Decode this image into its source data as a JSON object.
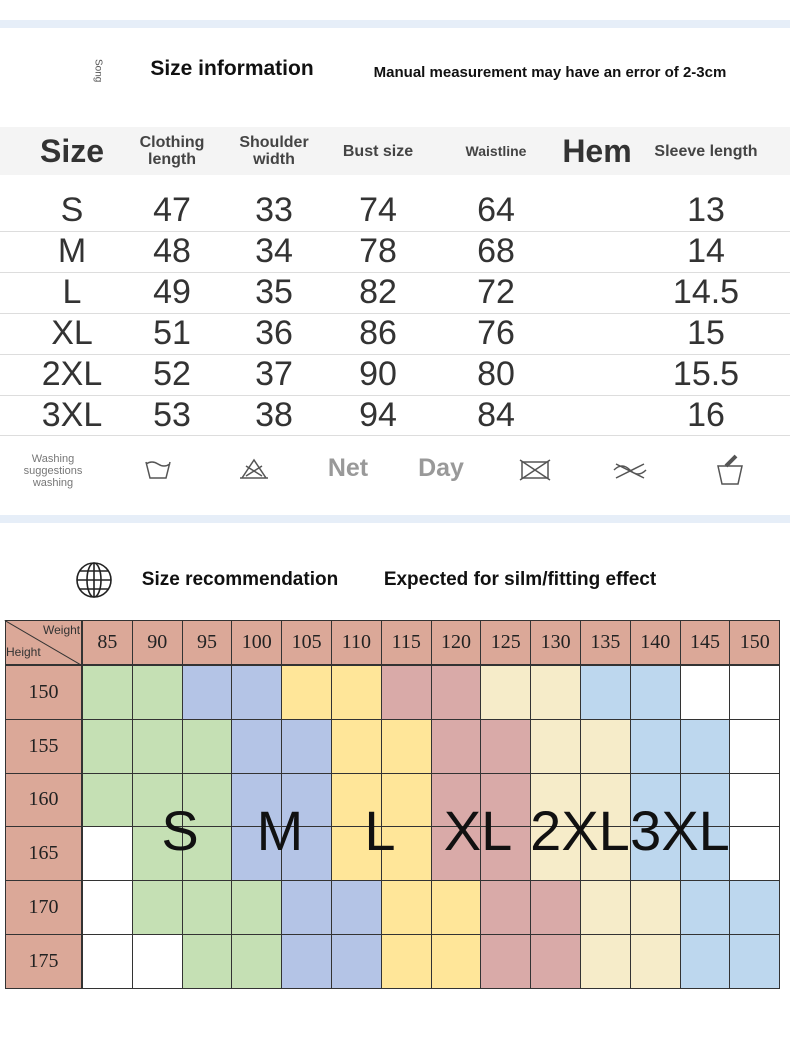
{
  "size_info": {
    "tag": "Song",
    "title": "Size information",
    "note": "Manual measurement may have an error of 2-3cm",
    "headers": [
      "Size",
      "Clothing length",
      "Shoulder width",
      "Bust size",
      "Waistline",
      "Hem",
      "Sleeve length"
    ],
    "rows": [
      [
        "S",
        47,
        33,
        74,
        64,
        null,
        13
      ],
      [
        "M",
        48,
        34,
        78,
        68,
        null,
        14
      ],
      [
        "L",
        49,
        35,
        82,
        72,
        null,
        14.5
      ],
      [
        "XL",
        51,
        36,
        86,
        76,
        null,
        15
      ],
      [
        "2XL",
        52,
        37,
        90,
        80,
        null,
        15.5
      ],
      [
        "3XL",
        53,
        38,
        94,
        84,
        null,
        16
      ]
    ]
  },
  "washing": {
    "label": "Washing suggestions washing",
    "words": [
      "Net",
      "Day"
    ]
  },
  "recommendation": {
    "title": "Size recommendation",
    "subtitle": "Expected for silm/fitting effect",
    "corner": {
      "weight": "Weight",
      "height": "Height"
    },
    "weights": [
      85,
      90,
      95,
      100,
      105,
      110,
      115,
      120,
      125,
      130,
      135,
      140,
      145,
      150
    ],
    "heights": [
      150,
      155,
      160,
      165,
      170,
      175
    ],
    "sizes": [
      "S",
      "M",
      "L",
      "XL",
      "2XL",
      "3XL"
    ],
    "cells": [
      [
        "#c5e0b4",
        "#c5e0b4",
        "#b4c4e6",
        "#b4c4e6",
        "#ffe699",
        "#ffe699",
        "#d9aaa8",
        "#d9aaa8",
        "#f6ecc9",
        "#f6ecc9",
        "#bdd7ee",
        "#bdd7ee",
        "#ffffff",
        "#ffffff"
      ],
      [
        "#c5e0b4",
        "#c5e0b4",
        "#c5e0b4",
        "#b4c4e6",
        "#b4c4e6",
        "#ffe699",
        "#ffe699",
        "#d9aaa8",
        "#d9aaa8",
        "#f6ecc9",
        "#f6ecc9",
        "#bdd7ee",
        "#bdd7ee",
        "#ffffff"
      ],
      [
        "#c5e0b4",
        "#c5e0b4",
        "#c5e0b4",
        "#b4c4e6",
        "#b4c4e6",
        "#ffe699",
        "#ffe699",
        "#d9aaa8",
        "#d9aaa8",
        "#f6ecc9",
        "#f6ecc9",
        "#bdd7ee",
        "#bdd7ee",
        "#ffffff"
      ],
      [
        "#ffffff",
        "#c5e0b4",
        "#c5e0b4",
        "#b4c4e6",
        "#b4c4e6",
        "#ffe699",
        "#ffe699",
        "#d9aaa8",
        "#d9aaa8",
        "#f6ecc9",
        "#f6ecc9",
        "#bdd7ee",
        "#bdd7ee",
        "#ffffff"
      ],
      [
        "#ffffff",
        "#c5e0b4",
        "#c5e0b4",
        "#c5e0b4",
        "#b4c4e6",
        "#b4c4e6",
        "#ffe699",
        "#ffe699",
        "#d9aaa8",
        "#d9aaa8",
        "#f6ecc9",
        "#f6ecc9",
        "#bdd7ee",
        "#bdd7ee"
      ],
      [
        "#ffffff",
        "#ffffff",
        "#c5e0b4",
        "#c5e0b4",
        "#b4c4e6",
        "#b4c4e6",
        "#ffe699",
        "#ffe699",
        "#d9aaa8",
        "#d9aaa8",
        "#f6ecc9",
        "#f6ecc9",
        "#bdd7ee",
        "#bdd7ee"
      ]
    ],
    "header_color": "#dba898"
  }
}
